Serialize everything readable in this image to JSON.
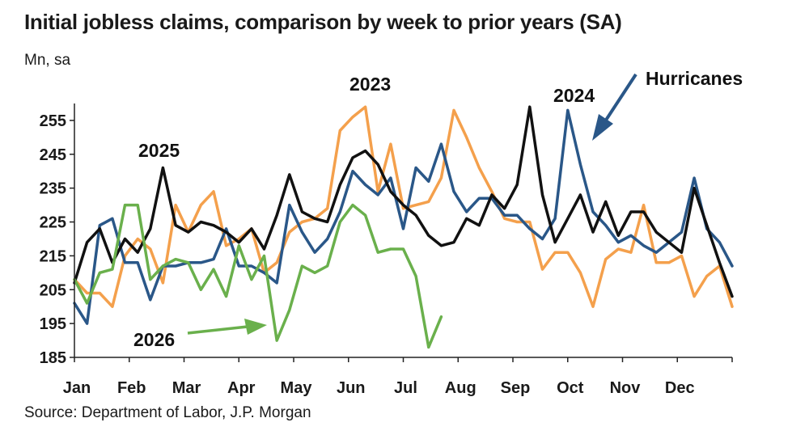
{
  "title": "Initial jobless claims, comparison by week to prior years (SA)",
  "units": "Mn, sa",
  "source": "Source: Department of Labor, J.P. Morgan",
  "chart_data": {
    "type": "line",
    "title": "Initial jobless claims, comparison by week to prior years (SA)",
    "ylabel": "Mn, sa",
    "ylim": [
      185,
      260
    ],
    "yticks": [
      "185",
      "195",
      "205",
      "215",
      "225",
      "235",
      "245",
      "255"
    ],
    "months": [
      "Jan",
      "Feb",
      "Mar",
      "Apr",
      "May",
      "Jun",
      "Jul",
      "Aug",
      "Sep",
      "Oct",
      "Nov",
      "Dec"
    ],
    "grid": false,
    "legend": "none",
    "series": [
      {
        "name": "2023",
        "color": "#f4a04c",
        "values": [
          208,
          204,
          204,
          200,
          215,
          220,
          217,
          207,
          230,
          222,
          230,
          234,
          218,
          220,
          223,
          210,
          213,
          222,
          225,
          226,
          229,
          252,
          256,
          259,
          234,
          248,
          229,
          230,
          231,
          238,
          258,
          250,
          241,
          234,
          226,
          225,
          225,
          211,
          216,
          216,
          210,
          200,
          214,
          217,
          216,
          230,
          213,
          213,
          215,
          203,
          209,
          212,
          200
        ]
      },
      {
        "name": "2024",
        "color": "#2a5788",
        "values": [
          201,
          195,
          224,
          226,
          213,
          213,
          202,
          212,
          212,
          213,
          213,
          214,
          223,
          212,
          212,
          210,
          207,
          230,
          222,
          216,
          220,
          228,
          240,
          236,
          233,
          238,
          223,
          241,
          237,
          248,
          234,
          228,
          232,
          232,
          227,
          227,
          223,
          220,
          226,
          258,
          242,
          228,
          224,
          219,
          221,
          218,
          216,
          219,
          222,
          238,
          223,
          219,
          212
        ]
      },
      {
        "name": "2025",
        "color": "#111111",
        "values": [
          207,
          219,
          223,
          213,
          220,
          216,
          223,
          241,
          224,
          222,
          225,
          224,
          222,
          219,
          223,
          217,
          227,
          239,
          228,
          226,
          225,
          236,
          244,
          246,
          242,
          234,
          230,
          227,
          221,
          218,
          219,
          226,
          224,
          233,
          229,
          236,
          259,
          233,
          219,
          226,
          233,
          222,
          231,
          221,
          228,
          228,
          222,
          219,
          216,
          235,
          224,
          213,
          203
        ]
      },
      {
        "name": "2026",
        "color": "#6ab04c",
        "values": [
          208,
          201,
          210,
          211,
          230,
          230,
          208,
          212,
          214,
          213,
          205,
          211,
          203,
          218,
          208,
          215,
          190,
          199,
          212,
          210,
          212,
          225,
          230,
          227,
          216,
          217,
          217,
          209,
          188,
          197
        ]
      }
    ],
    "annotations": [
      "2023",
      "2024",
      "2025",
      "2026",
      "Hurricanes"
    ]
  }
}
